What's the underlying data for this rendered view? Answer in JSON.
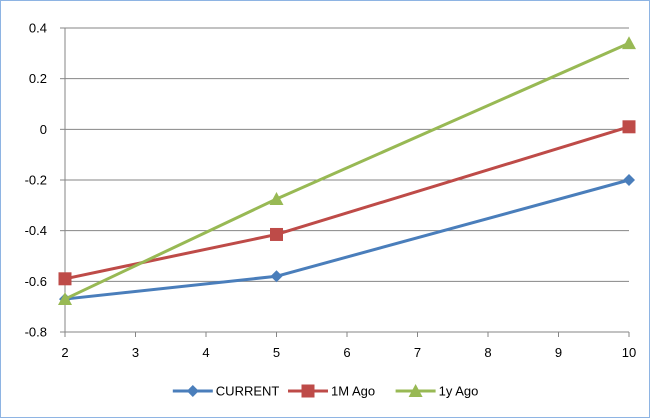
{
  "chart_data": {
    "type": "line",
    "x": [
      2,
      5,
      10
    ],
    "series": [
      {
        "name": "CURRENT",
        "values": [
          -0.67,
          -0.58,
          -0.2
        ],
        "color": "#4a7ebb",
        "marker": "diamond"
      },
      {
        "name": "1M Ago",
        "values": [
          -0.59,
          -0.415,
          0.01
        ],
        "color": "#be4b48",
        "marker": "square"
      },
      {
        "name": "1y Ago",
        "values": [
          -0.67,
          -0.275,
          0.34
        ],
        "color": "#98b954",
        "marker": "triangle"
      }
    ],
    "xlim": [
      2,
      10
    ],
    "ylim": [
      -0.8,
      0.4
    ],
    "x_ticks": [
      "2",
      "3",
      "4",
      "5",
      "6",
      "7",
      "8",
      "9",
      "10"
    ],
    "y_ticks": [
      "0.4",
      "0.2",
      "0",
      "-0.2",
      "-0.4",
      "-0.6",
      "-0.8"
    ],
    "grid": "horizontal",
    "legend_position": "bottom",
    "title": "",
    "xlabel": "",
    "ylabel": ""
  }
}
